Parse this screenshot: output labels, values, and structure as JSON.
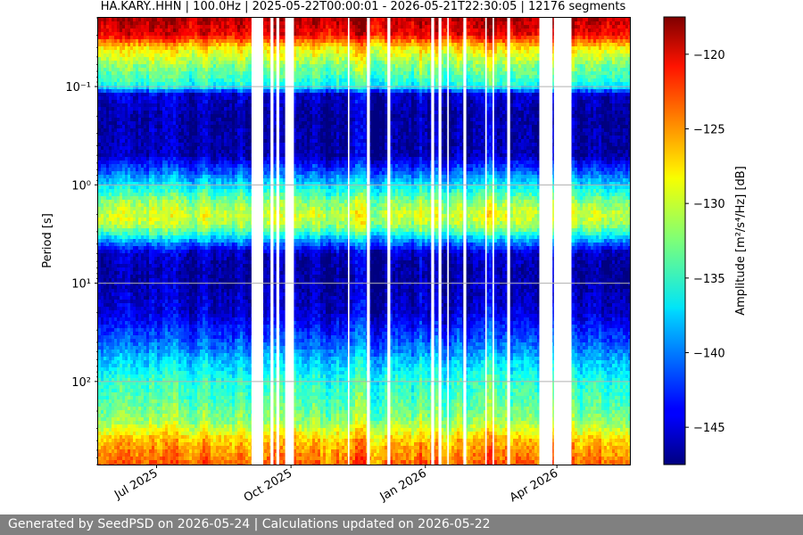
{
  "chart_data": {
    "type": "heatmap",
    "title": "HA.KARY..HHN | 100.0Hz | 2025-05-22T00:00:01 - 2026-05-21T22:30:05 | 12176 segments",
    "xlabel": "",
    "ylabel": "Period [s]",
    "yscale": "log",
    "yaxis_inverted": true,
    "ylim": [
      0.02,
      700
    ],
    "ytick_values": [
      0.1,
      1,
      10,
      100
    ],
    "ytick_labels": [
      "10⁻¹",
      "10⁰",
      "10¹",
      "10²"
    ],
    "xlim": [
      "2025-05-22",
      "2026-05-21"
    ],
    "xtick_dates": [
      "2025-07-01",
      "2025-10-01",
      "2026-01-01",
      "2026-04-01"
    ],
    "xtick_labels": [
      "Jul 2025",
      "Oct 2025",
      "Jan 2026",
      "Apr 2026"
    ],
    "colorbar": {
      "label": "Amplitude [m²/s⁴/Hz] [dB]",
      "colormap": "jet",
      "range": [
        -147.5,
        -117.5
      ],
      "tick_values": [
        -120,
        -125,
        -130,
        -135,
        -140,
        -145
      ],
      "tick_labels": [
        "−120",
        "−125",
        "−130",
        "−135",
        "−140",
        "−145"
      ]
    },
    "grid": true,
    "level_profile": {
      "period_s": [
        0.02,
        0.03,
        0.04,
        0.06,
        0.1,
        0.12,
        0.2,
        0.5,
        1.0,
        1.5,
        2.0,
        2.5,
        3.0,
        4.0,
        5.0,
        8.0,
        20,
        40,
        60,
        100,
        150,
        250,
        400,
        700
      ],
      "amplitude_db": [
        -119,
        -121,
        -128,
        -132,
        -136,
        -145,
        -146.5,
        -146,
        -137,
        -132,
        -130,
        -131,
        -134,
        -141,
        -145.5,
        -146.5,
        -145,
        -141,
        -138,
        -135,
        -134,
        -132,
        -127,
        -124
      ]
    },
    "data_gaps": [
      [
        "2025-09-04",
        "2025-09-12"
      ],
      [
        "2025-09-17",
        "2025-09-19"
      ],
      [
        "2025-09-21",
        "2025-09-23"
      ],
      [
        "2025-09-27",
        "2025-10-03"
      ],
      [
        "2025-11-09",
        "2025-11-10"
      ],
      [
        "2025-11-22",
        "2025-11-24"
      ],
      [
        "2025-12-06",
        "2025-12-08"
      ],
      [
        "2026-01-05",
        "2026-01-07"
      ],
      [
        "2026-01-10",
        "2026-01-12"
      ],
      [
        "2026-01-16",
        "2026-01-17"
      ],
      [
        "2026-01-27",
        "2026-01-29"
      ],
      [
        "2026-02-11",
        "2026-02-12"
      ],
      [
        "2026-02-16",
        "2026-02-17"
      ],
      [
        "2026-02-26",
        "2026-02-28"
      ],
      [
        "2026-03-20",
        "2026-03-29"
      ],
      [
        "2026-03-30",
        "2026-04-11"
      ]
    ]
  },
  "footer": {
    "text": "Generated by SeedPSD on 2026-05-24 | Calculations updated on 2026-05-22"
  }
}
